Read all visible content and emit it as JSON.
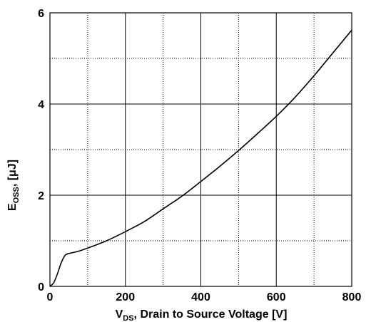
{
  "chart_data": {
    "type": "line",
    "title": "",
    "xlabel": {
      "prefix": "V",
      "sub": "DS",
      "suffix": ", Drain to Source Voltage [V]"
    },
    "ylabel": {
      "prefix": "E",
      "sub": "OSS",
      "suffix": ", [μJ]"
    },
    "xlim": [
      0,
      800
    ],
    "ylim": [
      0,
      6
    ],
    "xticks": [
      0,
      200,
      400,
      600,
      800
    ],
    "xtick_labels": [
      "0",
      "200",
      "400",
      "600",
      "800"
    ],
    "yticks": [
      0,
      2,
      4,
      6
    ],
    "ytick_labels": [
      "0",
      "2",
      "4",
      "6"
    ],
    "x_minor_grid": [
      100,
      300,
      500,
      700
    ],
    "y_minor_grid": [
      1,
      3,
      5
    ],
    "grid": true,
    "series": [
      {
        "x": [
          0,
          10,
          20,
          30,
          40,
          50,
          75,
          100,
          150,
          200,
          250,
          300,
          350,
          400,
          450,
          500,
          550,
          600,
          650,
          700,
          750,
          800
        ],
        "y": [
          0,
          0.08,
          0.28,
          0.52,
          0.68,
          0.72,
          0.77,
          0.84,
          1.0,
          1.2,
          1.42,
          1.7,
          1.98,
          2.3,
          2.63,
          2.98,
          3.35,
          3.73,
          4.15,
          4.62,
          5.12,
          5.62
        ]
      }
    ]
  }
}
